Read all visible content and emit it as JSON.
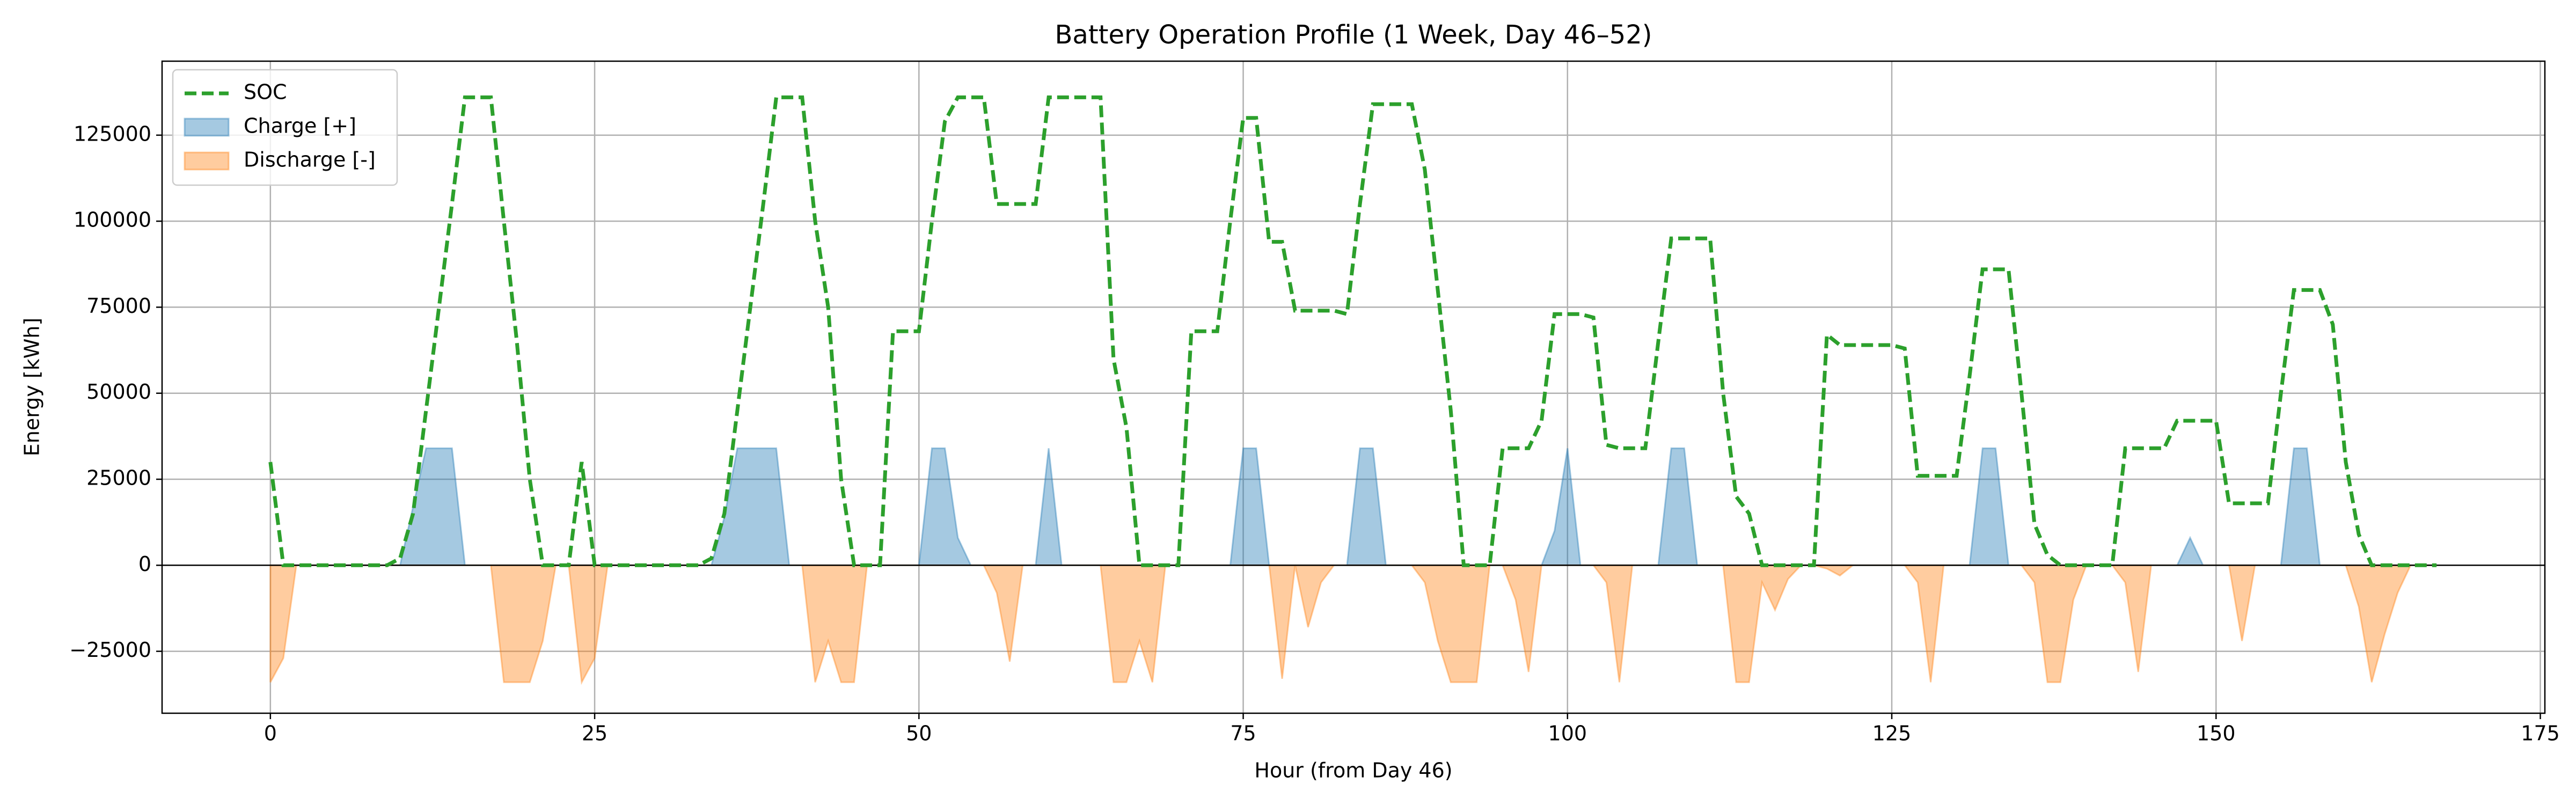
{
  "chart_data": {
    "type": "line",
    "title": "Battery Operation Profile (1 Week, Day 46–52)",
    "xlabel": "Hour (from Day 46)",
    "ylabel": "Energy [kWh]",
    "x": [
      0,
      1,
      2,
      3,
      4,
      5,
      6,
      7,
      8,
      9,
      10,
      11,
      12,
      13,
      14,
      15,
      16,
      17,
      18,
      19,
      20,
      21,
      22,
      23,
      24,
      25,
      26,
      27,
      28,
      29,
      30,
      31,
      32,
      33,
      34,
      35,
      36,
      37,
      38,
      39,
      40,
      41,
      42,
      43,
      44,
      45,
      46,
      47,
      48,
      49,
      50,
      51,
      52,
      53,
      54,
      55,
      56,
      57,
      58,
      59,
      60,
      61,
      62,
      63,
      64,
      65,
      66,
      67,
      68,
      69,
      70,
      71,
      72,
      73,
      74,
      75,
      76,
      77,
      78,
      79,
      80,
      81,
      82,
      83,
      84,
      85,
      86,
      87,
      88,
      89,
      90,
      91,
      92,
      93,
      94,
      95,
      96,
      97,
      98,
      99,
      100,
      101,
      102,
      103,
      104,
      105,
      106,
      107,
      108,
      109,
      110,
      111,
      112,
      113,
      114,
      115,
      116,
      117,
      118,
      119,
      120,
      121,
      122,
      123,
      124,
      125,
      126,
      127,
      128,
      129,
      130,
      131,
      132,
      133,
      134,
      135,
      136,
      137,
      138,
      139,
      140,
      141,
      142,
      143,
      144,
      145,
      146,
      147,
      148,
      149,
      150,
      151,
      152,
      153,
      154,
      155,
      156,
      157,
      158,
      159,
      160,
      161,
      162,
      163,
      164,
      165,
      166,
      167
    ],
    "series": [
      {
        "name": "SOC",
        "type": "line",
        "color": "#2ca02c",
        "dashed": true,
        "values": [
          30000,
          0,
          0,
          0,
          0,
          0,
          0,
          0,
          0,
          0,
          2000,
          15000,
          45000,
          75000,
          105000,
          136000,
          136000,
          136000,
          100000,
          65000,
          25000,
          0,
          0,
          0,
          30000,
          0,
          0,
          0,
          0,
          0,
          0,
          0,
          0,
          0,
          2000,
          15000,
          45000,
          75000,
          105000,
          136000,
          136000,
          136000,
          100000,
          75000,
          25000,
          0,
          0,
          0,
          68000,
          68000,
          68000,
          100000,
          129000,
          136000,
          136000,
          136000,
          105000,
          105000,
          105000,
          105000,
          136000,
          136000,
          136000,
          136000,
          136000,
          60000,
          40000,
          0,
          0,
          0,
          0,
          68000,
          68000,
          68000,
          100000,
          130000,
          130000,
          94000,
          94000,
          74000,
          74000,
          74000,
          74000,
          73000,
          105000,
          134000,
          134000,
          134000,
          134000,
          115000,
          80000,
          45000,
          0,
          0,
          0,
          34000,
          34000,
          34000,
          42000,
          73000,
          73000,
          73000,
          72000,
          35000,
          34000,
          34000,
          34000,
          65000,
          95000,
          95000,
          95000,
          95000,
          50000,
          20000,
          15000,
          0,
          0,
          0,
          0,
          0,
          67000,
          64000,
          64000,
          64000,
          64000,
          64000,
          63000,
          26000,
          26000,
          26000,
          26000,
          55000,
          86000,
          86000,
          86000,
          50000,
          12000,
          3000,
          0,
          0,
          0,
          0,
          0,
          34000,
          34000,
          34000,
          34000,
          42000,
          42000,
          42000,
          42000,
          18000,
          18000,
          18000,
          18000,
          50000,
          80000,
          80000,
          80000,
          70000,
          30000,
          9000,
          0,
          0,
          0,
          0,
          0,
          0
        ]
      },
      {
        "name": "Charge [+]",
        "type": "area",
        "color": "#1f77b4",
        "opacity": 0.4,
        "values": [
          0,
          0,
          0,
          0,
          0,
          0,
          0,
          0,
          0,
          0,
          0,
          17000,
          34000,
          34000,
          34000,
          0,
          0,
          0,
          0,
          0,
          0,
          0,
          0,
          0,
          0,
          0,
          0,
          0,
          0,
          0,
          0,
          0,
          0,
          0,
          0,
          14000,
          34000,
          34000,
          34000,
          34000,
          0,
          0,
          0,
          0,
          0,
          0,
          0,
          0,
          0,
          0,
          0,
          34000,
          34000,
          8000,
          0,
          0,
          0,
          0,
          0,
          0,
          34000,
          0,
          0,
          0,
          0,
          0,
          0,
          0,
          0,
          0,
          0,
          0,
          0,
          0,
          0,
          34000,
          34000,
          0,
          0,
          0,
          0,
          0,
          0,
          0,
          34000,
          34000,
          0,
          0,
          0,
          0,
          0,
          0,
          0,
          0,
          0,
          0,
          0,
          0,
          0,
          10000,
          34000,
          0,
          0,
          0,
          0,
          0,
          0,
          0,
          34000,
          34000,
          0,
          0,
          0,
          0,
          0,
          0,
          0,
          0,
          0,
          0,
          0,
          0,
          0,
          0,
          0,
          0,
          0,
          0,
          0,
          0,
          0,
          0,
          34000,
          34000,
          0,
          0,
          0,
          0,
          0,
          0,
          0,
          0,
          0,
          0,
          0,
          0,
          0,
          0,
          8000,
          0,
          0,
          0,
          0,
          0,
          0,
          0,
          34000,
          34000,
          0,
          0,
          0,
          0,
          0,
          0,
          0,
          0,
          0,
          0
        ]
      },
      {
        "name": "Discharge [-]",
        "type": "area",
        "color": "#ff7f0e",
        "opacity": 0.4,
        "values": [
          -34000,
          -27000,
          0,
          0,
          0,
          0,
          0,
          0,
          0,
          0,
          0,
          0,
          0,
          0,
          0,
          0,
          0,
          0,
          -34000,
          -34000,
          -34000,
          -22000,
          0,
          0,
          -34000,
          -27000,
          0,
          0,
          0,
          0,
          0,
          0,
          0,
          0,
          0,
          0,
          0,
          0,
          0,
          0,
          0,
          0,
          -34000,
          -22000,
          -34000,
          -34000,
          0,
          0,
          0,
          0,
          0,
          0,
          0,
          0,
          0,
          0,
          -8000,
          -28000,
          0,
          0,
          0,
          0,
          0,
          0,
          0,
          -34000,
          -34000,
          -22000,
          -34000,
          0,
          0,
          0,
          0,
          0,
          0,
          0,
          0,
          0,
          -33000,
          0,
          -18000,
          -5000,
          0,
          0,
          0,
          0,
          0,
          0,
          0,
          -5000,
          -22000,
          -34000,
          -34000,
          -34000,
          0,
          0,
          -10000,
          -31000,
          0,
          0,
          0,
          0,
          0,
          -5000,
          -34000,
          0,
          0,
          0,
          0,
          0,
          0,
          0,
          0,
          -34000,
          -34000,
          -5000,
          -13000,
          -4000,
          0,
          0,
          -1000,
          -3000,
          0,
          0,
          0,
          0,
          0,
          -5000,
          -34000,
          0,
          0,
          0,
          0,
          0,
          0,
          0,
          -5000,
          -34000,
          -34000,
          -10000,
          0,
          0,
          0,
          -5000,
          -31000,
          0,
          0,
          0,
          0,
          0,
          0,
          0,
          -22000,
          0,
          0,
          0,
          0,
          0,
          0,
          0,
          0,
          -12000,
          -34000,
          -20000,
          -8000,
          0,
          0,
          0
        ]
      }
    ],
    "xlim": [
      -8.35,
      175.35
    ],
    "ylim": [
      -43000,
      146500
    ],
    "xticks": [
      0,
      25,
      50,
      75,
      100,
      125,
      150,
      175
    ],
    "yticks": [
      {
        "value": -25000,
        "label": "−25000"
      },
      0,
      25000,
      50000,
      75000,
      100000,
      125000
    ],
    "grid": true,
    "zero_line": true,
    "legend": "upper left"
  }
}
